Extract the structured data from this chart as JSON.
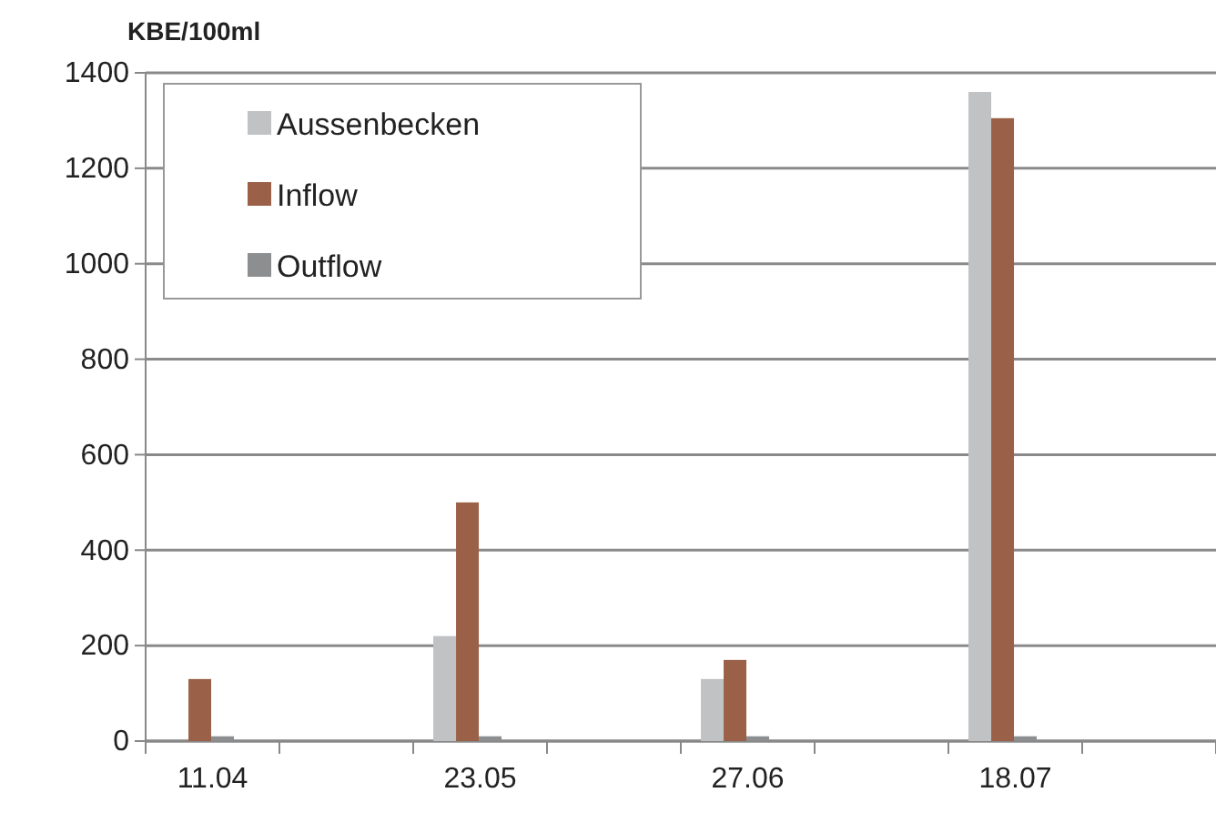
{
  "chart_data": {
    "type": "bar",
    "ylabel": "KBE/100ml",
    "categories": [
      "11.04",
      null,
      "23.05",
      null,
      "27.06",
      null,
      "18.07",
      null
    ],
    "series": [
      {
        "name": "Aussenbecken",
        "color": "#c0c2c4",
        "values": [
          0,
          null,
          220,
          null,
          130,
          null,
          1360,
          null
        ]
      },
      {
        "name": "Inflow",
        "color": "#9b6148",
        "values": [
          130,
          null,
          500,
          null,
          170,
          null,
          1305,
          null
        ]
      },
      {
        "name": "Outflow",
        "color": "#8c8e8f",
        "values": [
          10,
          null,
          10,
          null,
          10,
          null,
          10,
          null
        ]
      }
    ],
    "ylim": [
      0,
      1400
    ],
    "yticks": [
      0,
      200,
      400,
      600,
      800,
      1000,
      1200,
      1400
    ],
    "grid": "y",
    "legend": "top left"
  }
}
